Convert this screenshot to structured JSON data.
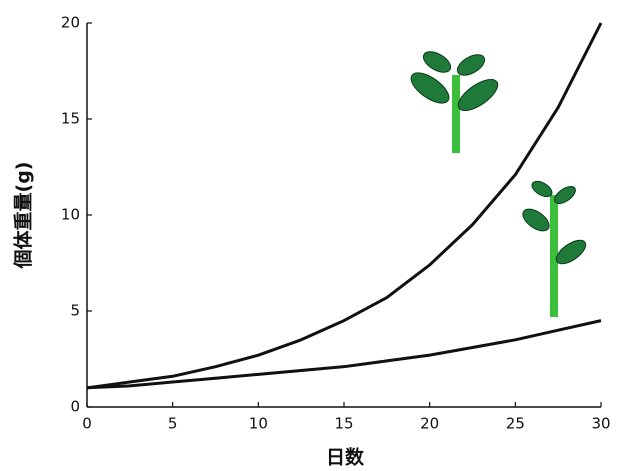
{
  "chart_data": {
    "type": "line",
    "x_label": "日数",
    "y_label": "個体重量(g)",
    "x": [
      0,
      2.5,
      5,
      7.5,
      10,
      12.5,
      15,
      17.5,
      20,
      22.5,
      25,
      27.5,
      30
    ],
    "series": [
      {
        "color": "#111111",
        "values": [
          1,
          1.3,
          1.6,
          2.1,
          2.7,
          3.5,
          4.5,
          5.7,
          7.4,
          9.5,
          12.1,
          15.6,
          20
        ]
      },
      {
        "color": "#111111",
        "values": [
          1,
          1.1,
          1.3,
          1.5,
          1.7,
          1.9,
          2.1,
          2.4,
          2.7,
          3.1,
          3.5,
          4.0,
          4.5
        ]
      }
    ],
    "xlim": [
      0,
      30
    ],
    "xticks": [
      0,
      5,
      10,
      15,
      20,
      25,
      30
    ],
    "ylim": [
      0,
      20
    ],
    "yticks": [
      0,
      5,
      10,
      15,
      20
    ]
  }
}
